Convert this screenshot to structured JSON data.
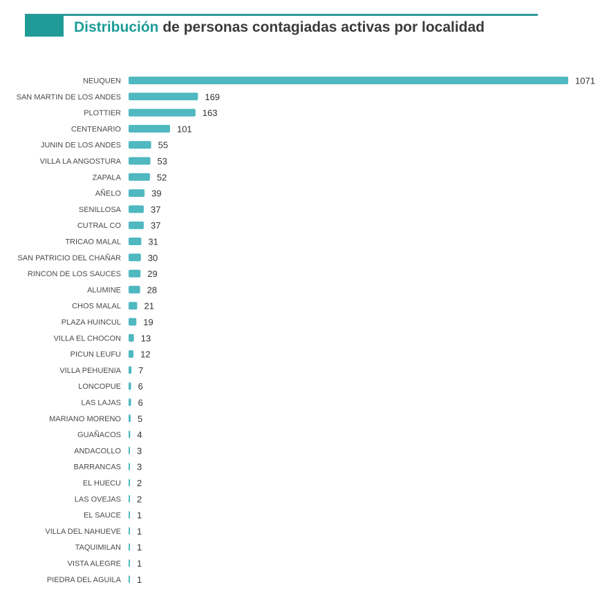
{
  "header": {
    "title_accent": "Distribución",
    "title_rest": " de personas contagiadas activas por localidad"
  },
  "colors": {
    "accent": "#1f9c98",
    "bar": "#4fb8c0",
    "header_line": "#2a9a97"
  },
  "chart_data": {
    "type": "bar",
    "orientation": "horizontal",
    "title": "Distribución de personas contagiadas activas por localidad",
    "xlabel": "",
    "ylabel": "",
    "xlim": [
      0,
      1071
    ],
    "grid": false,
    "legend": "none",
    "categories": [
      "NEUQUEN",
      "SAN MARTIN DE LOS ANDES",
      "PLOTTIER",
      "CENTENARIO",
      "JUNIN DE LOS ANDES",
      "VILLA LA ANGOSTURA",
      "ZAPALA",
      "AÑELO",
      "SENILLOSA",
      "CUTRAL CO",
      "TRICAO MALAL",
      "SAN PATRICIO DEL CHAÑAR",
      "RINCON DE LOS SAUCES",
      "ALUMINE",
      "CHOS MALAL",
      "PLAZA HUINCUL",
      "VILLA EL CHOCON",
      "PICUN LEUFU",
      "VILLA PEHUENIA",
      "LONCOPUE",
      "LAS LAJAS",
      "MARIANO MORENO",
      "GUAÑACOS",
      "ANDACOLLO",
      "BARRANCAS",
      "EL HUECU",
      "LAS OVEJAS",
      "EL SAUCE",
      "VILLA DEL NAHUEVE",
      "TAQUIMILAN",
      "VISTA ALEGRE",
      "PIEDRA DEL AGUILA"
    ],
    "values": [
      1071,
      169,
      163,
      101,
      55,
      53,
      52,
      39,
      37,
      37,
      31,
      30,
      29,
      28,
      21,
      19,
      13,
      12,
      7,
      6,
      6,
      5,
      4,
      3,
      3,
      2,
      2,
      1,
      1,
      1,
      1,
      1
    ]
  }
}
